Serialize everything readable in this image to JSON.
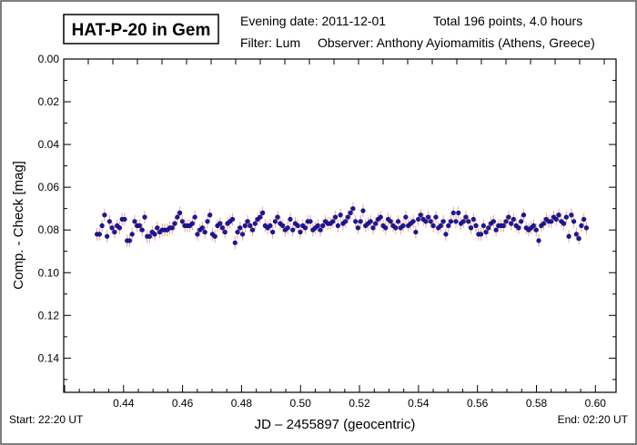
{
  "chart_data": {
    "type": "scatter",
    "title": "HAT-P-20 in Gem",
    "info": {
      "evening_date": "Evening date: 2011-12-01",
      "total": "Total 196 points, 4.0 hours",
      "filter": "Filter: Lum",
      "observer": "Observer: Anthony Ayiomamitis (Athens, Greece)"
    },
    "xlabel": "JD – 2455897  (geocentric)",
    "ylabel": "Comp. - Check [mag]",
    "start_label": "Start: 22:20 UT",
    "end_label": "End: 02:20 UT",
    "xlim": [
      0.4197,
      0.607
    ],
    "ylim": [
      0.0,
      0.156
    ],
    "y_inverted": true,
    "xticks": [
      "0.44",
      "0.46",
      "0.48",
      "0.50",
      "0.52",
      "0.54",
      "0.56",
      "0.58",
      "0.60"
    ],
    "yticks": [
      "0.00",
      "0.02",
      "0.04",
      "0.06",
      "0.08",
      "0.10",
      "0.12",
      "0.14"
    ],
    "x_start": 0.431,
    "x_step": 0.000851,
    "error": 0.003,
    "marker_color": "#1a1aa0",
    "error_color": "#f0a0a0",
    "y": [
      0.082,
      0.082,
      0.078,
      0.073,
      0.083,
      0.076,
      0.079,
      0.081,
      0.078,
      0.079,
      0.075,
      0.075,
      0.085,
      0.085,
      0.082,
      0.076,
      0.078,
      0.078,
      0.08,
      0.074,
      0.083,
      0.083,
      0.081,
      0.082,
      0.079,
      0.081,
      0.08,
      0.08,
      0.08,
      0.079,
      0.079,
      0.077,
      0.074,
      0.072,
      0.076,
      0.078,
      0.078,
      0.078,
      0.077,
      0.074,
      0.082,
      0.08,
      0.079,
      0.081,
      0.076,
      0.073,
      0.082,
      0.083,
      0.078,
      0.077,
      0.079,
      0.081,
      0.077,
      0.076,
      0.075,
      0.086,
      0.081,
      0.079,
      0.082,
      0.078,
      0.076,
      0.078,
      0.08,
      0.077,
      0.075,
      0.074,
      0.072,
      0.078,
      0.079,
      0.078,
      0.081,
      0.076,
      0.074,
      0.077,
      0.078,
      0.08,
      0.079,
      0.075,
      0.08,
      0.077,
      0.078,
      0.081,
      0.078,
      0.079,
      0.076,
      0.076,
      0.08,
      0.079,
      0.078,
      0.08,
      0.078,
      0.076,
      0.077,
      0.077,
      0.076,
      0.074,
      0.078,
      0.073,
      0.077,
      0.076,
      0.074,
      0.072,
      0.07,
      0.076,
      0.079,
      0.076,
      0.071,
      0.078,
      0.077,
      0.076,
      0.079,
      0.077,
      0.075,
      0.074,
      0.078,
      0.079,
      0.075,
      0.076,
      0.078,
      0.079,
      0.076,
      0.079,
      0.078,
      0.074,
      0.078,
      0.077,
      0.076,
      0.081,
      0.075,
      0.073,
      0.075,
      0.076,
      0.074,
      0.076,
      0.078,
      0.074,
      0.079,
      0.078,
      0.076,
      0.082,
      0.078,
      0.076,
      0.072,
      0.076,
      0.072,
      0.077,
      0.076,
      0.074,
      0.076,
      0.079,
      0.075,
      0.078,
      0.082,
      0.082,
      0.078,
      0.081,
      0.079,
      0.077,
      0.076,
      0.08,
      0.078,
      0.078,
      0.078,
      0.076,
      0.074,
      0.077,
      0.075,
      0.078,
      0.079,
      0.076,
      0.073,
      0.079,
      0.08,
      0.079,
      0.078,
      0.08,
      0.085,
      0.078,
      0.077,
      0.075,
      0.076,
      0.076,
      0.074,
      0.075,
      0.073,
      0.076,
      0.077,
      0.074,
      0.083,
      0.073,
      0.076,
      0.082,
      0.084,
      0.078,
      0.075,
      0.079
    ]
  }
}
